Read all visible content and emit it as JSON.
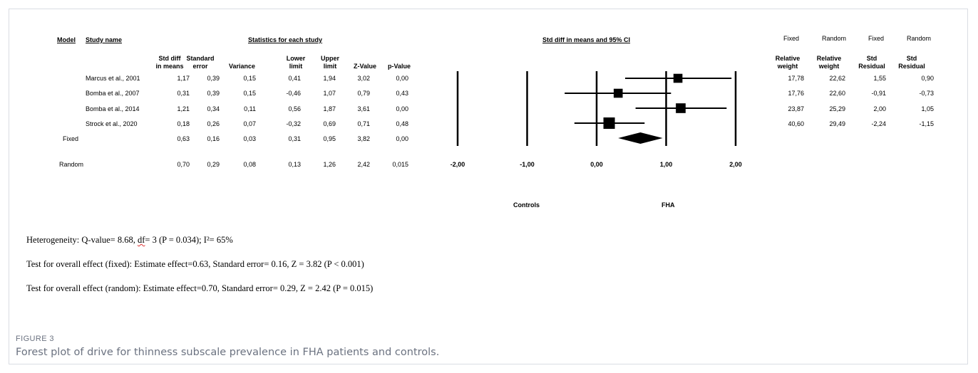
{
  "headers": {
    "model": "Model",
    "study_name": "Study name",
    "stats_title": "Statistics for each study",
    "ci_title": "Std diff in means and 95% CI",
    "std_diff": [
      "Std diff",
      "in means"
    ],
    "std_error": [
      "Standard",
      "error"
    ],
    "variance": "Variance",
    "lower": [
      "Lower",
      "limit"
    ],
    "upper": [
      "Upper",
      "limit"
    ],
    "z": "Z-Value",
    "p": "p-Value",
    "fixed_top": "Fixed",
    "random_top": "Random",
    "fixed_top2": "Fixed",
    "random_top2": "Random",
    "rel_w_fixed": [
      "Relative",
      "weight"
    ],
    "rel_w_random": [
      "Relative",
      "weight"
    ],
    "resid_fixed": [
      "Std",
      "Residual"
    ],
    "resid_random": [
      "Std",
      "Residual"
    ]
  },
  "rows": [
    {
      "name": "Marcus et al., 2001",
      "smd": "1,17",
      "se": "0,39",
      "var": "0,15",
      "lo": "0,41",
      "hi": "1,94",
      "z": "3,02",
      "p": "0,00",
      "wf": "17,78",
      "wr": "22,62",
      "rf": "1,55",
      "rr": "0,90"
    },
    {
      "name": "Bomba et al., 2007",
      "smd": "0,31",
      "se": "0,39",
      "var": "0,15",
      "lo": "-0,46",
      "hi": "1,07",
      "z": "0,79",
      "p": "0,43",
      "wf": "17,76",
      "wr": "22,60",
      "rf": "-0,91",
      "rr": "-0,73"
    },
    {
      "name": "Bomba et al., 2014",
      "smd": "1,21",
      "se": "0,34",
      "var": "0,11",
      "lo": "0,56",
      "hi": "1,87",
      "z": "3,61",
      "p": "0,00",
      "wf": "23,87",
      "wr": "25,29",
      "rf": "2,00",
      "rr": "1,05"
    },
    {
      "name": "Strock et al., 2020",
      "smd": "0,18",
      "se": "0,26",
      "var": "0,07",
      "lo": "-0,32",
      "hi": "0,69",
      "z": "0,71",
      "p": "0,48",
      "wf": "40,60",
      "wr": "29,49",
      "rf": "-2,24",
      "rr": "-1,15"
    }
  ],
  "fixed_row": {
    "label": "Fixed",
    "smd": "0,63",
    "se": "0,16",
    "var": "0,03",
    "lo": "0,31",
    "hi": "0,95",
    "z": "3,82",
    "p": "0,00"
  },
  "random_row": {
    "label": "Random",
    "smd": "0,70",
    "se": "0,29",
    "var": "0,08",
    "lo": "0,13",
    "hi": "1,26",
    "z": "2,42",
    "p": "0,015"
  },
  "side_labels": {
    "left": "Controls",
    "right": "FHA"
  },
  "footnotes": {
    "heterogeneity_pre": "Heterogeneity: Q-value= 8.68, ",
    "heterogeneity_df": "df",
    "heterogeneity_post": "= 3 (P = 0.034); I²= 65%",
    "fixed": "Test for overall effect (fixed): Estimate effect=0.63, Standard error= 0.16, Z = 3.82 (P < 0.001)",
    "random": "Test for overall effect (random): Estimate effect=0.70, Standard error= 0.29, Z = 2.42 (P = 0.015)"
  },
  "caption": {
    "label": "FIGURE 3",
    "text": "Forest plot of drive for thinness subscale prevalence in FHA patients and controls."
  },
  "chart_data": {
    "type": "forest",
    "xlim": [
      -2,
      2
    ],
    "ticks": [
      -2,
      -1,
      0,
      1,
      2
    ],
    "tick_labels": [
      "-2,00",
      "-1,00",
      "0,00",
      "1,00",
      "2,00"
    ],
    "studies": [
      {
        "name": "Marcus et al., 2001",
        "est": 1.17,
        "lower": 0.41,
        "upper": 1.94,
        "weight": 17.78
      },
      {
        "name": "Bomba et al., 2007",
        "est": 0.31,
        "lower": -0.46,
        "upper": 1.07,
        "weight": 17.76
      },
      {
        "name": "Bomba et al., 2014",
        "est": 1.21,
        "lower": 0.56,
        "upper": 1.87,
        "weight": 23.87
      },
      {
        "name": "Strock et al., 2020",
        "est": 0.18,
        "lower": -0.32,
        "upper": 0.69,
        "weight": 40.6
      }
    ],
    "summary": {
      "name": "Fixed",
      "est": 0.63,
      "lower": 0.31,
      "upper": 0.95
    }
  }
}
